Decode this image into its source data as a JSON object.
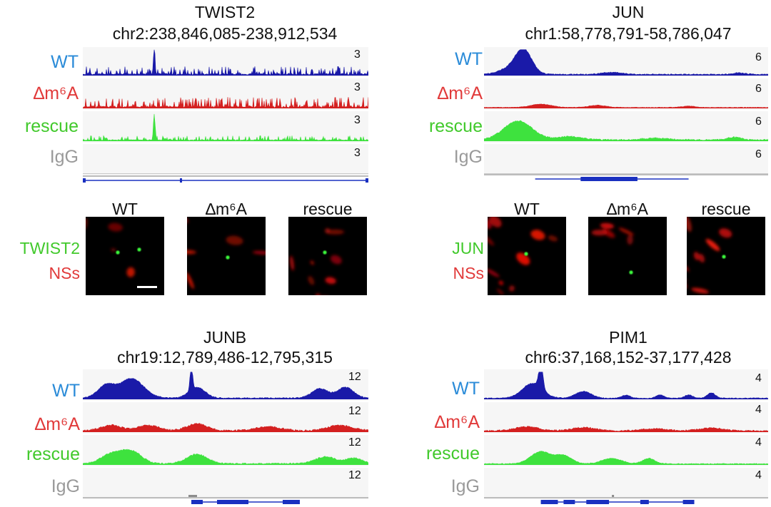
{
  "colors": {
    "wt": "#1a1aa8",
    "dm": "#d42020",
    "rs": "#3ee23e",
    "ig": "#8c8c8c",
    "gene": "#1a30c0"
  },
  "tracks": {
    "wt": "WT",
    "dm": "∆m⁶A",
    "rs": "rescue",
    "ig": "IgG"
  },
  "panels": [
    {
      "gene": "TWIST2",
      "locus": "chr2:238,846,085-238,912,534",
      "scale": "3"
    },
    {
      "gene": "JUN",
      "locus": "chr1:58,778,791-58,786,047",
      "scale": "6"
    },
    {
      "gene": "JUNB",
      "locus": "chr19:12,789,486-12,795,315",
      "scale": "12"
    },
    {
      "gene": "PIM1",
      "locus": "chr6:37,168,152-37,177,428",
      "scale": "4"
    }
  ],
  "imaging": {
    "columns": [
      "WT",
      "∆m⁶A",
      "rescue"
    ],
    "left": {
      "target": "TWIST2",
      "stain": "NSs"
    },
    "right": {
      "target": "JUN",
      "stain": "NSs"
    }
  }
}
